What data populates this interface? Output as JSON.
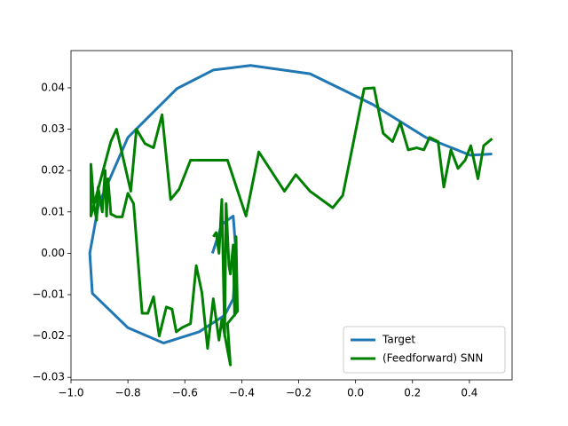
{
  "chart_data": {
    "type": "line",
    "xlim": [
      -1.0,
      0.55
    ],
    "ylim": [
      -0.0306,
      0.049
    ],
    "xticks": [
      {
        "value": -1.0,
        "label": "−1.0"
      },
      {
        "value": -0.8,
        "label": "−0.8"
      },
      {
        "value": -0.6,
        "label": "−0.6"
      },
      {
        "value": -0.4,
        "label": "−0.4"
      },
      {
        "value": -0.2,
        "label": "−0.2"
      },
      {
        "value": 0.0,
        "label": "0.0"
      },
      0.2,
      0.4
    ],
    "yticks": [
      {
        "value": -0.03,
        "label": "−0.03"
      },
      {
        "value": -0.02,
        "label": "−0.02"
      },
      {
        "value": -0.01,
        "label": "−0.01"
      },
      {
        "value": 0.0,
        "label": "0.00"
      },
      0.01,
      0.02,
      0.03,
      0.04
    ],
    "legend": "lower right",
    "series": [
      {
        "name": "Target",
        "color": "#1f77b4",
        "x": [
          -0.503,
          -0.47,
          -0.43,
          -0.42,
          -0.43,
          -0.46,
          -0.55,
          -0.675,
          -0.8,
          -0.925,
          -0.934,
          -0.903,
          -0.8,
          -0.628,
          -0.5,
          -0.369,
          -0.16,
          0.06,
          0.247,
          0.403,
          0.48
        ],
        "values": [
          0.0,
          0.007,
          0.009,
          0.0,
          -0.011,
          -0.015,
          -0.019,
          -0.0217,
          -0.018,
          -0.0097,
          0.0,
          0.0118,
          0.028,
          0.0398,
          0.0443,
          0.0454,
          0.0434,
          0.036,
          0.028,
          0.0237,
          0.024
        ]
      },
      {
        "name": "(Feedforward) SNN",
        "color": "#008000",
        "x": [
          -0.5,
          -0.49,
          -0.48,
          -0.47,
          -0.46,
          -0.455,
          -0.445,
          -0.44,
          -0.43,
          -0.425,
          -0.42,
          -0.415,
          -0.45,
          -0.44,
          -0.47,
          -0.48,
          -0.5,
          -0.52,
          -0.54,
          -0.56,
          -0.58,
          -0.61,
          -0.63,
          -0.645,
          -0.665,
          -0.69,
          -0.71,
          -0.73,
          -0.75,
          -0.78,
          -0.8,
          -0.82,
          -0.84,
          -0.86,
          -0.87,
          -0.875,
          -0.88,
          -0.89,
          -0.905,
          -0.91,
          -0.92,
          -0.93,
          -0.93,
          -0.86,
          -0.84,
          -0.82,
          -0.79,
          -0.77,
          -0.74,
          -0.71,
          -0.68,
          -0.65,
          -0.62,
          -0.58,
          -0.54,
          -0.45,
          -0.385,
          -0.34,
          -0.25,
          -0.21,
          -0.16,
          -0.08,
          -0.045,
          -0.01,
          0.03,
          0.065,
          0.097,
          0.13,
          0.157,
          0.185,
          0.215,
          0.24,
          0.26,
          0.29,
          0.31,
          0.335,
          0.36,
          0.385,
          0.405,
          0.43,
          0.45,
          0.48
        ],
        "values": [
          0.004,
          0.005,
          0.0,
          0.013,
          -0.02,
          0.012,
          -0.003,
          -0.005,
          0.002,
          -0.015,
          0.004,
          -0.014,
          -0.017,
          -0.027,
          -0.016,
          -0.021,
          -0.011,
          -0.023,
          -0.0095,
          -0.003,
          -0.017,
          -0.018,
          -0.019,
          -0.0135,
          -0.013,
          -0.02,
          -0.0105,
          -0.0145,
          -0.0145,
          0.012,
          0.0145,
          0.0088,
          0.0088,
          0.0095,
          0.018,
          0.009,
          0.02,
          0.01,
          0.016,
          0.008,
          0.012,
          0.0215,
          0.009,
          0.027,
          0.03,
          0.024,
          0.015,
          0.03,
          0.0265,
          0.0255,
          0.0335,
          0.013,
          0.0155,
          0.0225,
          0.0225,
          0.0225,
          0.009,
          0.0245,
          0.015,
          0.019,
          0.015,
          0.011,
          0.014,
          0.026,
          0.0398,
          0.04,
          0.029,
          0.027,
          0.0316,
          0.025,
          0.0255,
          0.025,
          0.028,
          0.027,
          0.016,
          0.025,
          0.0205,
          0.0225,
          0.026,
          0.018,
          0.026,
          0.0277
        ]
      }
    ]
  }
}
